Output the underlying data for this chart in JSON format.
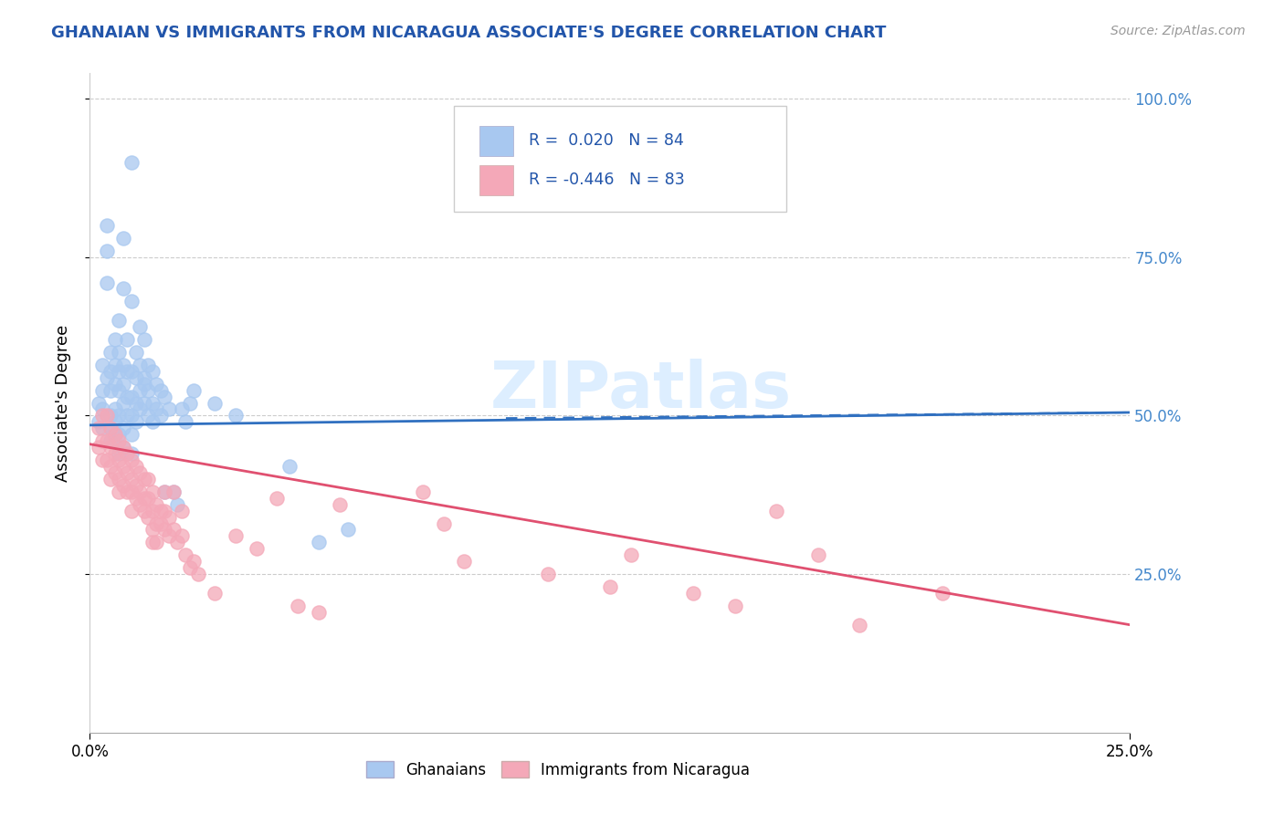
{
  "title": "GHANAIAN VS IMMIGRANTS FROM NICARAGUA ASSOCIATE'S DEGREE CORRELATION CHART",
  "source_text": "Source: ZipAtlas.com",
  "ylabel": "Associate's Degree",
  "xlim": [
    0.0,
    0.25
  ],
  "ylim": [
    0.0,
    1.04
  ],
  "watermark": "ZIPatlas",
  "blue_color": "#a8c8f0",
  "pink_color": "#f4a8b8",
  "blue_line_color": "#3070c0",
  "pink_line_color": "#e05070",
  "title_color": "#2255aa",
  "ytick_color": "#4488cc",
  "legend_text_color": "#2255aa",
  "blue_scatter": [
    [
      0.002,
      0.52
    ],
    [
      0.002,
      0.49
    ],
    [
      0.003,
      0.54
    ],
    [
      0.003,
      0.51
    ],
    [
      0.003,
      0.48
    ],
    [
      0.003,
      0.58
    ],
    [
      0.004,
      0.8
    ],
    [
      0.004,
      0.76
    ],
    [
      0.004,
      0.71
    ],
    [
      0.004,
      0.56
    ],
    [
      0.005,
      0.6
    ],
    [
      0.005,
      0.57
    ],
    [
      0.005,
      0.54
    ],
    [
      0.005,
      0.5
    ],
    [
      0.005,
      0.48
    ],
    [
      0.005,
      0.46
    ],
    [
      0.006,
      0.62
    ],
    [
      0.006,
      0.58
    ],
    [
      0.006,
      0.55
    ],
    [
      0.006,
      0.51
    ],
    [
      0.006,
      0.49
    ],
    [
      0.006,
      0.47
    ],
    [
      0.007,
      0.65
    ],
    [
      0.007,
      0.6
    ],
    [
      0.007,
      0.57
    ],
    [
      0.007,
      0.54
    ],
    [
      0.007,
      0.5
    ],
    [
      0.007,
      0.47
    ],
    [
      0.007,
      0.44
    ],
    [
      0.008,
      0.78
    ],
    [
      0.008,
      0.7
    ],
    [
      0.008,
      0.58
    ],
    [
      0.008,
      0.55
    ],
    [
      0.008,
      0.52
    ],
    [
      0.008,
      0.48
    ],
    [
      0.008,
      0.45
    ],
    [
      0.009,
      0.62
    ],
    [
      0.009,
      0.57
    ],
    [
      0.009,
      0.53
    ],
    [
      0.009,
      0.5
    ],
    [
      0.01,
      0.9
    ],
    [
      0.01,
      0.68
    ],
    [
      0.01,
      0.57
    ],
    [
      0.01,
      0.53
    ],
    [
      0.01,
      0.5
    ],
    [
      0.01,
      0.47
    ],
    [
      0.01,
      0.44
    ],
    [
      0.011,
      0.6
    ],
    [
      0.011,
      0.56
    ],
    [
      0.011,
      0.52
    ],
    [
      0.011,
      0.49
    ],
    [
      0.012,
      0.64
    ],
    [
      0.012,
      0.58
    ],
    [
      0.012,
      0.54
    ],
    [
      0.012,
      0.51
    ],
    [
      0.013,
      0.62
    ],
    [
      0.013,
      0.56
    ],
    [
      0.013,
      0.52
    ],
    [
      0.013,
      0.55
    ],
    [
      0.014,
      0.58
    ],
    [
      0.014,
      0.54
    ],
    [
      0.014,
      0.5
    ],
    [
      0.015,
      0.57
    ],
    [
      0.015,
      0.52
    ],
    [
      0.015,
      0.49
    ],
    [
      0.016,
      0.55
    ],
    [
      0.016,
      0.51
    ],
    [
      0.017,
      0.54
    ],
    [
      0.017,
      0.5
    ],
    [
      0.018,
      0.53
    ],
    [
      0.018,
      0.38
    ],
    [
      0.019,
      0.51
    ],
    [
      0.02,
      0.38
    ],
    [
      0.021,
      0.36
    ],
    [
      0.022,
      0.51
    ],
    [
      0.023,
      0.49
    ],
    [
      0.024,
      0.52
    ],
    [
      0.025,
      0.54
    ],
    [
      0.03,
      0.52
    ],
    [
      0.035,
      0.5
    ],
    [
      0.048,
      0.42
    ],
    [
      0.055,
      0.3
    ],
    [
      0.062,
      0.32
    ]
  ],
  "pink_scatter": [
    [
      0.002,
      0.48
    ],
    [
      0.002,
      0.45
    ],
    [
      0.003,
      0.5
    ],
    [
      0.003,
      0.46
    ],
    [
      0.003,
      0.43
    ],
    [
      0.004,
      0.5
    ],
    [
      0.004,
      0.46
    ],
    [
      0.004,
      0.43
    ],
    [
      0.005,
      0.48
    ],
    [
      0.005,
      0.45
    ],
    [
      0.005,
      0.42
    ],
    [
      0.005,
      0.4
    ],
    [
      0.006,
      0.47
    ],
    [
      0.006,
      0.44
    ],
    [
      0.006,
      0.41
    ],
    [
      0.007,
      0.46
    ],
    [
      0.007,
      0.43
    ],
    [
      0.007,
      0.4
    ],
    [
      0.007,
      0.38
    ],
    [
      0.008,
      0.45
    ],
    [
      0.008,
      0.42
    ],
    [
      0.008,
      0.39
    ],
    [
      0.009,
      0.44
    ],
    [
      0.009,
      0.41
    ],
    [
      0.009,
      0.38
    ],
    [
      0.01,
      0.43
    ],
    [
      0.01,
      0.4
    ],
    [
      0.01,
      0.38
    ],
    [
      0.01,
      0.35
    ],
    [
      0.011,
      0.42
    ],
    [
      0.011,
      0.39
    ],
    [
      0.011,
      0.37
    ],
    [
      0.012,
      0.41
    ],
    [
      0.012,
      0.38
    ],
    [
      0.012,
      0.36
    ],
    [
      0.013,
      0.4
    ],
    [
      0.013,
      0.37
    ],
    [
      0.013,
      0.35
    ],
    [
      0.014,
      0.4
    ],
    [
      0.014,
      0.37
    ],
    [
      0.014,
      0.34
    ],
    [
      0.015,
      0.38
    ],
    [
      0.015,
      0.35
    ],
    [
      0.015,
      0.32
    ],
    [
      0.015,
      0.3
    ],
    [
      0.016,
      0.36
    ],
    [
      0.016,
      0.33
    ],
    [
      0.016,
      0.3
    ],
    [
      0.017,
      0.35
    ],
    [
      0.017,
      0.33
    ],
    [
      0.018,
      0.38
    ],
    [
      0.018,
      0.35
    ],
    [
      0.018,
      0.32
    ],
    [
      0.019,
      0.34
    ],
    [
      0.019,
      0.31
    ],
    [
      0.02,
      0.32
    ],
    [
      0.02,
      0.38
    ],
    [
      0.021,
      0.3
    ],
    [
      0.022,
      0.35
    ],
    [
      0.022,
      0.31
    ],
    [
      0.023,
      0.28
    ],
    [
      0.024,
      0.26
    ],
    [
      0.025,
      0.27
    ],
    [
      0.026,
      0.25
    ],
    [
      0.03,
      0.22
    ],
    [
      0.035,
      0.31
    ],
    [
      0.04,
      0.29
    ],
    [
      0.045,
      0.37
    ],
    [
      0.05,
      0.2
    ],
    [
      0.055,
      0.19
    ],
    [
      0.06,
      0.36
    ],
    [
      0.08,
      0.38
    ],
    [
      0.085,
      0.33
    ],
    [
      0.09,
      0.27
    ],
    [
      0.11,
      0.25
    ],
    [
      0.125,
      0.23
    ],
    [
      0.13,
      0.28
    ],
    [
      0.145,
      0.22
    ],
    [
      0.155,
      0.2
    ],
    [
      0.165,
      0.35
    ],
    [
      0.175,
      0.28
    ],
    [
      0.185,
      0.17
    ],
    [
      0.205,
      0.22
    ]
  ],
  "blue_trend_x": [
    0.0,
    0.25
  ],
  "blue_trend_y": [
    0.485,
    0.505
  ],
  "pink_trend_x": [
    0.0,
    0.25
  ],
  "pink_trend_y": [
    0.455,
    0.17
  ]
}
